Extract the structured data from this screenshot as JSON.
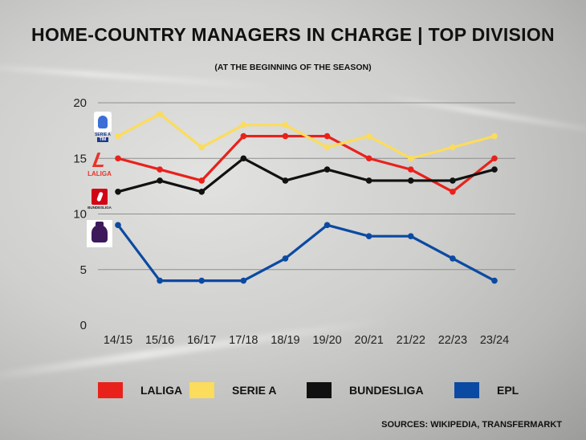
{
  "title": "HOME-COUNTRY MANAGERS IN CHARGE | TOP DIVISION",
  "subtitle": "(AT THE BEGINNING OF THE SEASON)",
  "source": "SOURCES: WIKIPEDIA, TRANSFERMARKT",
  "logos": {
    "serie_a": {
      "line1": "SERIE A",
      "line2": "TIM",
      "color": "#1a3a8f"
    },
    "laliga": {
      "mark": "L",
      "text": "LALIGA",
      "color": "#e8332a"
    },
    "bundesliga": {
      "text": "BUNDESLIGA",
      "color": "#d20515"
    },
    "epl": {
      "color": "#3d195b"
    }
  },
  "chart_data": {
    "type": "line",
    "title": "HOME-COUNTRY MANAGERS IN CHARGE | TOP DIVISION",
    "subtitle": "(AT THE BEGINNING OF THE SEASON)",
    "categories": [
      "14/15",
      "15/16",
      "16/17",
      "17/18",
      "18/19",
      "19/20",
      "20/21",
      "21/22",
      "22/23",
      "23/24"
    ],
    "yticks": [
      0,
      5,
      10,
      15,
      20
    ],
    "ylim": [
      0,
      20
    ],
    "grid": true,
    "legend_position": "bottom",
    "series": [
      {
        "name": "LALIGA",
        "color": "#e8221b",
        "values": [
          15,
          14,
          13,
          17,
          17,
          17,
          15,
          14,
          12,
          15
        ]
      },
      {
        "name": "SERIE A",
        "color": "#fbdc5c",
        "values": [
          17,
          19,
          16,
          18,
          18,
          16,
          17,
          15,
          16,
          17
        ]
      },
      {
        "name": "BUNDESLIGA",
        "color": "#111111",
        "values": [
          12,
          13,
          12,
          15,
          13,
          14,
          13,
          13,
          13,
          14
        ]
      },
      {
        "name": "EPL",
        "color": "#0b4aa2",
        "values": [
          9,
          4,
          4,
          4,
          6,
          9,
          8,
          8,
          6,
          4
        ]
      }
    ]
  }
}
